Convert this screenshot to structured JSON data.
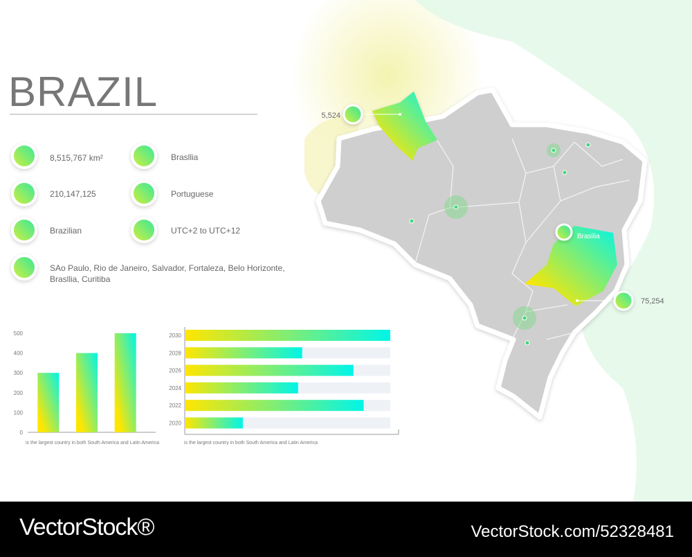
{
  "title": "BRAZIL",
  "info": {
    "area": "8,515,767 km²",
    "population": "210,147,125",
    "nationality": "Brazilian",
    "cities": "SAo Paulo, Rio de Janeiro, Salvador, Fortaleza, Belo Horizonte, Brasllia, Curitiba",
    "capital": "Brasllia",
    "language": "Portuguese",
    "timezone": "UTC+2 to UTC+12"
  },
  "map": {
    "labels": [
      "5,524",
      "Brasilia",
      "75,254"
    ]
  },
  "chart_data": [
    {
      "type": "bar",
      "orientation": "vertical",
      "categories": [
        null,
        null,
        null
      ],
      "values": [
        300,
        400,
        500
      ],
      "ylim": [
        0,
        500
      ],
      "yticks": [
        0,
        100,
        200,
        300,
        400,
        500
      ],
      "caption": "is the largest country in both South America and Latin America",
      "colors": [
        "#ffe600",
        "#00f5e8"
      ]
    },
    {
      "type": "bar",
      "orientation": "horizontal",
      "categories": [
        "2030",
        "2028",
        "2026",
        "2024",
        "2022",
        "2020"
      ],
      "values": [
        100,
        57,
        82,
        55,
        87,
        28
      ],
      "xlim": [
        0,
        100
      ],
      "caption": "is the largest country in both South America and Latin America",
      "colors": [
        "#ffe600",
        "#00f5e8"
      ]
    }
  ],
  "footer": {
    "brand": "VectorStock®",
    "id": "VectorStock.com/52328481"
  }
}
